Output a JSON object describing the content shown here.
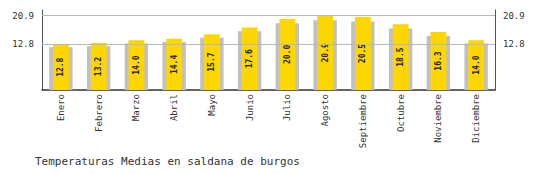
{
  "chart_data": {
    "type": "bar",
    "title": "Temperaturas Medias en saldana de burgos",
    "categories": [
      "Enero",
      "Febrero",
      "Marzo",
      "Abril",
      "Mayo",
      "Junio",
      "Julio",
      "Agosto",
      "Septiembre",
      "Octubre",
      "Noviembre",
      "Diciembre"
    ],
    "series": [
      {
        "color": "#C0C0C0",
        "values": [
          12.0,
          12.3,
          13.1,
          13.5,
          14.7,
          16.5,
          18.8,
          19.6,
          19.3,
          17.3,
          15.2,
          13.1
        ]
      },
      {
        "color": "#FFD700",
        "values": [
          12.8,
          13.2,
          14.0,
          14.4,
          15.7,
          17.6,
          20.0,
          20.9,
          20.5,
          18.5,
          16.3,
          14.0
        ],
        "value_labels": [
          "12.8",
          "13.2",
          "14.0",
          "14.4",
          "15.7",
          "17.6",
          "20.0",
          "20.9",
          "20.5",
          "18.5",
          "16.3",
          "14.0"
        ],
        "data_labels": true
      }
    ],
    "ylim": [
      0,
      22.5
    ],
    "yticks": [
      12.8,
      20.9
    ],
    "y2lim": [
      0,
      22.5
    ],
    "y2ticks": [
      12.8,
      20.9
    ],
    "grid": true
  }
}
